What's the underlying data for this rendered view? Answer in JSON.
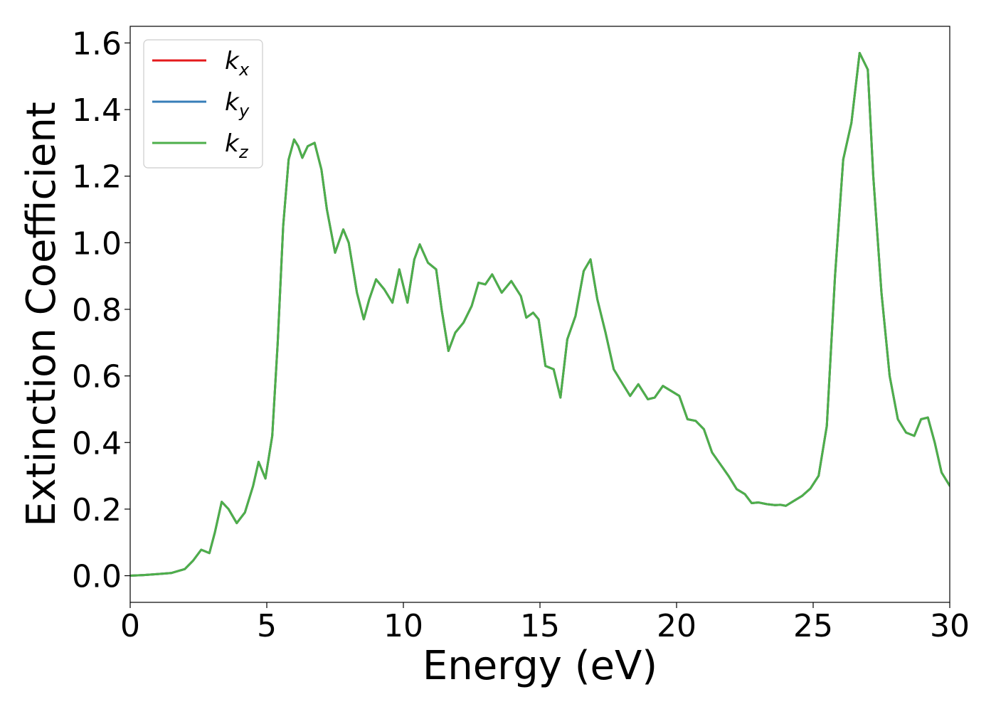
{
  "chart_data": {
    "type": "line",
    "title": "",
    "xlabel": "Energy (eV)",
    "ylabel": "Extinction Coefficient",
    "xlim": [
      0,
      30
    ],
    "ylim": [
      -0.08,
      1.65
    ],
    "xticks": [
      0,
      5,
      10,
      15,
      20,
      25,
      30
    ],
    "xtick_labels": [
      "0",
      "5",
      "10",
      "15",
      "20",
      "25",
      "30"
    ],
    "yticks": [
      0.0,
      0.2,
      0.4,
      0.6,
      0.8,
      1.0,
      1.2,
      1.4,
      1.6
    ],
    "ytick_labels": [
      "0.0",
      "0.2",
      "0.4",
      "0.6",
      "0.8",
      "1.0",
      "1.2",
      "1.4",
      "1.6"
    ],
    "grid": false,
    "legend_position": "top-left",
    "x": [
      0,
      0.5,
      1.0,
      1.5,
      2.0,
      2.3,
      2.6,
      2.9,
      3.1,
      3.35,
      3.6,
      3.9,
      4.2,
      4.5,
      4.7,
      4.95,
      5.2,
      5.4,
      5.6,
      5.8,
      6.0,
      6.15,
      6.3,
      6.5,
      6.75,
      7.0,
      7.2,
      7.5,
      7.8,
      8.0,
      8.3,
      8.55,
      8.75,
      9.0,
      9.3,
      9.6,
      9.85,
      10.15,
      10.4,
      10.6,
      10.9,
      11.2,
      11.4,
      11.65,
      11.9,
      12.2,
      12.5,
      12.75,
      13.0,
      13.25,
      13.6,
      13.95,
      14.3,
      14.5,
      14.75,
      14.95,
      15.2,
      15.5,
      15.75,
      16.0,
      16.3,
      16.6,
      16.85,
      17.1,
      17.4,
      17.7,
      18.0,
      18.3,
      18.6,
      18.95,
      19.2,
      19.5,
      19.8,
      20.1,
      20.4,
      20.7,
      21.0,
      21.3,
      21.6,
      21.9,
      22.2,
      22.5,
      22.75,
      23.0,
      23.3,
      23.6,
      23.8,
      24.0,
      24.3,
      24.6,
      24.9,
      25.2,
      25.5,
      25.8,
      26.1,
      26.4,
      26.7,
      27.0,
      27.2,
      27.5,
      27.8,
      28.1,
      28.4,
      28.7,
      28.95,
      29.2,
      29.45,
      29.7,
      30.0
    ],
    "series": [
      {
        "name": "k_x",
        "color": "#e41a1c",
        "values": [
          0.0,
          0.002,
          0.005,
          0.008,
          0.02,
          0.045,
          0.078,
          0.068,
          0.13,
          0.222,
          0.2,
          0.158,
          0.19,
          0.27,
          0.342,
          0.292,
          0.42,
          0.7,
          1.05,
          1.25,
          1.31,
          1.29,
          1.255,
          1.29,
          1.3,
          1.22,
          1.1,
          0.97,
          1.04,
          1.0,
          0.85,
          0.77,
          0.83,
          0.89,
          0.86,
          0.82,
          0.92,
          0.82,
          0.95,
          0.995,
          0.94,
          0.92,
          0.8,
          0.675,
          0.73,
          0.76,
          0.81,
          0.88,
          0.875,
          0.905,
          0.85,
          0.885,
          0.84,
          0.775,
          0.79,
          0.77,
          0.63,
          0.62,
          0.535,
          0.71,
          0.78,
          0.915,
          0.95,
          0.83,
          0.73,
          0.62,
          0.58,
          0.54,
          0.575,
          0.53,
          0.535,
          0.57,
          0.555,
          0.54,
          0.47,
          0.465,
          0.44,
          0.37,
          0.335,
          0.3,
          0.26,
          0.245,
          0.218,
          0.22,
          0.215,
          0.212,
          0.213,
          0.21,
          0.225,
          0.24,
          0.262,
          0.3,
          0.45,
          0.9,
          1.25,
          1.36,
          1.57,
          1.52,
          1.2,
          0.85,
          0.6,
          0.47,
          0.43,
          0.42,
          0.47,
          0.475,
          0.4,
          0.31,
          0.27
        ]
      },
      {
        "name": "k_y",
        "color": "#377eb8",
        "values": [
          0.0,
          0.002,
          0.005,
          0.008,
          0.02,
          0.045,
          0.078,
          0.068,
          0.13,
          0.222,
          0.2,
          0.158,
          0.19,
          0.27,
          0.342,
          0.292,
          0.42,
          0.7,
          1.05,
          1.25,
          1.31,
          1.29,
          1.255,
          1.29,
          1.3,
          1.22,
          1.1,
          0.97,
          1.04,
          1.0,
          0.85,
          0.77,
          0.83,
          0.89,
          0.86,
          0.82,
          0.92,
          0.82,
          0.95,
          0.995,
          0.94,
          0.92,
          0.8,
          0.675,
          0.73,
          0.76,
          0.81,
          0.88,
          0.875,
          0.905,
          0.85,
          0.885,
          0.84,
          0.775,
          0.79,
          0.77,
          0.63,
          0.62,
          0.535,
          0.71,
          0.78,
          0.915,
          0.95,
          0.83,
          0.73,
          0.62,
          0.58,
          0.54,
          0.575,
          0.53,
          0.535,
          0.57,
          0.555,
          0.54,
          0.47,
          0.465,
          0.44,
          0.37,
          0.335,
          0.3,
          0.26,
          0.245,
          0.218,
          0.22,
          0.215,
          0.212,
          0.213,
          0.21,
          0.225,
          0.24,
          0.262,
          0.3,
          0.45,
          0.9,
          1.25,
          1.36,
          1.57,
          1.52,
          1.2,
          0.85,
          0.6,
          0.47,
          0.43,
          0.42,
          0.47,
          0.475,
          0.4,
          0.31,
          0.27
        ]
      },
      {
        "name": "k_z",
        "color": "#4daf4a",
        "values": [
          0.0,
          0.002,
          0.005,
          0.008,
          0.02,
          0.045,
          0.078,
          0.068,
          0.13,
          0.222,
          0.2,
          0.158,
          0.19,
          0.27,
          0.342,
          0.292,
          0.42,
          0.7,
          1.05,
          1.25,
          1.31,
          1.29,
          1.255,
          1.29,
          1.3,
          1.22,
          1.1,
          0.97,
          1.04,
          1.0,
          0.85,
          0.77,
          0.83,
          0.89,
          0.86,
          0.82,
          0.92,
          0.82,
          0.95,
          0.995,
          0.94,
          0.92,
          0.8,
          0.675,
          0.73,
          0.76,
          0.81,
          0.88,
          0.875,
          0.905,
          0.85,
          0.885,
          0.84,
          0.775,
          0.79,
          0.77,
          0.63,
          0.62,
          0.535,
          0.71,
          0.78,
          0.915,
          0.95,
          0.83,
          0.73,
          0.62,
          0.58,
          0.54,
          0.575,
          0.53,
          0.535,
          0.57,
          0.555,
          0.54,
          0.47,
          0.465,
          0.44,
          0.37,
          0.335,
          0.3,
          0.26,
          0.245,
          0.218,
          0.22,
          0.215,
          0.212,
          0.213,
          0.21,
          0.225,
          0.24,
          0.262,
          0.3,
          0.45,
          0.9,
          1.25,
          1.36,
          1.57,
          1.52,
          1.2,
          0.85,
          0.6,
          0.47,
          0.43,
          0.42,
          0.47,
          0.475,
          0.4,
          0.31,
          0.27
        ]
      }
    ],
    "legend": [
      {
        "base": "k",
        "sub": "x",
        "color": "#e41a1c"
      },
      {
        "base": "k",
        "sub": "y",
        "color": "#377eb8"
      },
      {
        "base": "k",
        "sub": "z",
        "color": "#4daf4a"
      }
    ]
  }
}
